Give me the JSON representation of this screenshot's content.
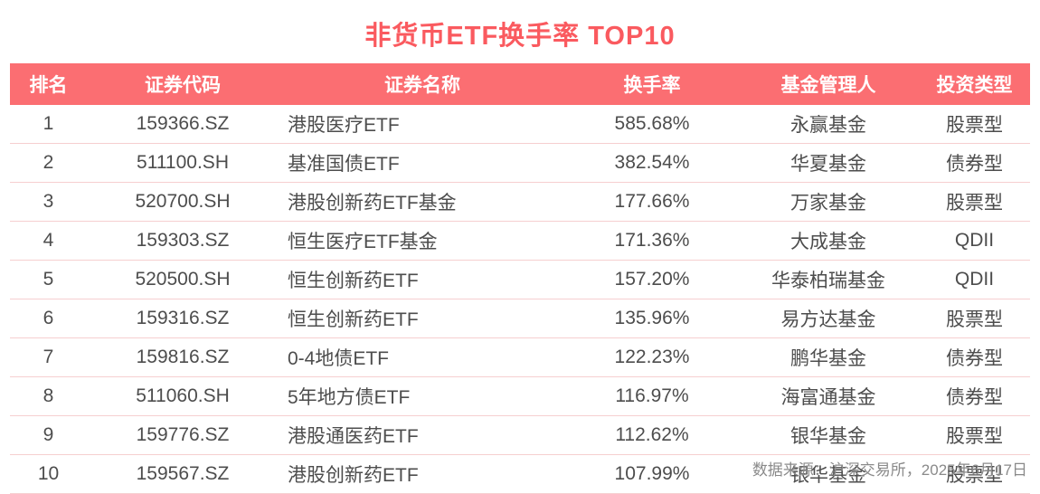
{
  "title": "非货币ETF换手率 TOP10",
  "chart_data": {
    "type": "table",
    "title": "非货币ETF换手率 TOP10",
    "columns": [
      "排名",
      "证券代码",
      "证券名称",
      "换手率",
      "基金管理人",
      "投资类型"
    ],
    "rows": [
      [
        "1",
        "159366.SZ",
        "港股医疗ETF",
        "585.68%",
        "永赢基金",
        "股票型"
      ],
      [
        "2",
        "511100.SH",
        "基准国债ETF",
        "382.54%",
        "华夏基金",
        "债券型"
      ],
      [
        "3",
        "520700.SH",
        "港股创新药ETF基金",
        "177.66%",
        "万家基金",
        "股票型"
      ],
      [
        "4",
        "159303.SZ",
        "恒生医疗ETF基金",
        "171.36%",
        "大成基金",
        "QDII"
      ],
      [
        "5",
        "520500.SH",
        "恒生创新药ETF",
        "157.20%",
        "华泰柏瑞基金",
        "QDII"
      ],
      [
        "6",
        "159316.SZ",
        "恒生创新药ETF",
        "135.96%",
        "易方达基金",
        "股票型"
      ],
      [
        "7",
        "159816.SZ",
        "0-4地债ETF",
        "122.23%",
        "鹏华基金",
        "债券型"
      ],
      [
        "8",
        "511060.SH",
        "5年地方债ETF",
        "116.97%",
        "海富通基金",
        "债券型"
      ],
      [
        "9",
        "159776.SZ",
        "港股通医药ETF",
        "112.62%",
        "银华基金",
        "股票型"
      ],
      [
        "10",
        "159567.SZ",
        "港股创新药ETF",
        "107.99%",
        "银华基金",
        "股票型"
      ]
    ]
  },
  "footer": {
    "source_note": "数据来源：沪深交易所，2025年6月17日"
  },
  "colors": {
    "accent": "#fa5a5f",
    "header_bg": "#fb6e72",
    "row_border": "#f6cfd0",
    "body_text": "#4d4d4d",
    "footer_text": "#8a8a8a"
  }
}
